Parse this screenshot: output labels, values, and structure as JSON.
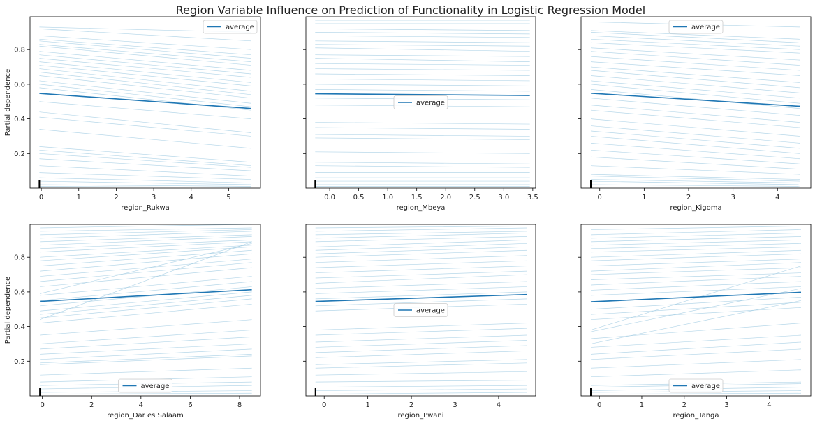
{
  "figure": {
    "title": "Region Variable Influence on Prediction of Functionality in Logistic Regression Model"
  },
  "style": {
    "ice_color": "#9ecae1",
    "average_color": "#1f77b4",
    "rug_color": "#000000",
    "axis_color": "#000000"
  },
  "chart_data": [
    {
      "type": "line",
      "xlabel": "region_Rukwa",
      "ylabel": "Partial dependence",
      "xlim": [
        -0.3,
        5.85
      ],
      "ylim": [
        0.0,
        0.99
      ],
      "xticks": [
        0,
        1,
        2,
        3,
        4,
        5
      ],
      "yticks": [
        0.2,
        0.4,
        0.6,
        0.8
      ],
      "show_yticklabels": true,
      "x_range": [
        -0.05,
        5.6
      ],
      "rug": [
        -0.05
      ],
      "legend": {
        "label": "average",
        "placement": "top-right"
      },
      "average": [
        0.547,
        0.46
      ],
      "ice": [
        [
          0.93,
          0.9
        ],
        [
          0.92,
          0.85
        ],
        [
          0.88,
          0.8
        ],
        [
          0.86,
          0.77
        ],
        [
          0.85,
          0.75
        ],
        [
          0.83,
          0.73
        ],
        [
          0.82,
          0.71
        ],
        [
          0.79,
          0.68
        ],
        [
          0.77,
          0.66
        ],
        [
          0.75,
          0.64
        ],
        [
          0.73,
          0.61
        ],
        [
          0.71,
          0.59
        ],
        [
          0.69,
          0.56
        ],
        [
          0.67,
          0.54
        ],
        [
          0.65,
          0.52
        ],
        [
          0.62,
          0.49
        ],
        [
          0.6,
          0.47
        ],
        [
          0.58,
          0.45
        ],
        [
          0.5,
          0.4
        ],
        [
          0.44,
          0.32
        ],
        [
          0.41,
          0.3
        ],
        [
          0.34,
          0.23
        ],
        [
          0.24,
          0.15
        ],
        [
          0.22,
          0.13
        ],
        [
          0.2,
          0.12
        ],
        [
          0.17,
          0.1
        ],
        [
          0.13,
          0.07
        ],
        [
          0.09,
          0.05
        ],
        [
          0.06,
          0.03
        ],
        [
          0.04,
          0.02
        ],
        [
          0.02,
          0.01
        ],
        [
          0.01,
          0.005
        ]
      ]
    },
    {
      "type": "line",
      "xlabel": "region_Mbeya",
      "ylabel": "",
      "xlim": [
        -0.41,
        3.55
      ],
      "ylim": [
        0.0,
        0.99
      ],
      "xticks": [
        0.0,
        0.5,
        1.0,
        1.5,
        2.0,
        2.5,
        3.0,
        3.5
      ],
      "yticks": [
        0.2,
        0.4,
        0.6,
        0.8
      ],
      "show_yticklabels": false,
      "x_range": [
        -0.25,
        3.45
      ],
      "rug": [
        -0.25
      ],
      "legend": {
        "label": "average",
        "placement": "center"
      },
      "average": [
        0.545,
        0.535
      ],
      "ice": [
        [
          0.97,
          0.97
        ],
        [
          0.95,
          0.95
        ],
        [
          0.92,
          0.91
        ],
        [
          0.9,
          0.89
        ],
        [
          0.88,
          0.87
        ],
        [
          0.85,
          0.84
        ],
        [
          0.83,
          0.82
        ],
        [
          0.81,
          0.79
        ],
        [
          0.77,
          0.76
        ],
        [
          0.75,
          0.73
        ],
        [
          0.72,
          0.71
        ],
        [
          0.69,
          0.68
        ],
        [
          0.66,
          0.65
        ],
        [
          0.63,
          0.62
        ],
        [
          0.6,
          0.59
        ],
        [
          0.57,
          0.56
        ],
        [
          0.52,
          0.51
        ],
        [
          0.48,
          0.47
        ],
        [
          0.38,
          0.37
        ],
        [
          0.35,
          0.34
        ],
        [
          0.31,
          0.3
        ],
        [
          0.29,
          0.28
        ],
        [
          0.21,
          0.2
        ],
        [
          0.15,
          0.14
        ],
        [
          0.13,
          0.12
        ],
        [
          0.09,
          0.09
        ],
        [
          0.06,
          0.06
        ],
        [
          0.04,
          0.04
        ],
        [
          0.02,
          0.02
        ],
        [
          0.01,
          0.01
        ]
      ]
    },
    {
      "type": "line",
      "xlabel": "region_Kigoma",
      "ylabel": "",
      "xlim": [
        -0.42,
        4.75
      ],
      "ylim": [
        0.0,
        0.99
      ],
      "xticks": [
        0,
        1,
        2,
        3,
        4
      ],
      "yticks": [
        0.2,
        0.4,
        0.6,
        0.8
      ],
      "show_yticklabels": false,
      "x_range": [
        -0.2,
        4.5
      ],
      "rug": [
        -0.2
      ],
      "legend": {
        "label": "average",
        "placement": "top-center"
      },
      "average": [
        0.548,
        0.473
      ],
      "ice": [
        [
          0.96,
          0.93
        ],
        [
          0.91,
          0.86
        ],
        [
          0.9,
          0.84
        ],
        [
          0.88,
          0.82
        ],
        [
          0.86,
          0.8
        ],
        [
          0.84,
          0.78
        ],
        [
          0.81,
          0.74
        ],
        [
          0.79,
          0.71
        ],
        [
          0.76,
          0.68
        ],
        [
          0.73,
          0.65
        ],
        [
          0.7,
          0.61
        ],
        [
          0.68,
          0.58
        ],
        [
          0.65,
          0.55
        ],
        [
          0.62,
          0.52
        ],
        [
          0.6,
          0.49
        ],
        [
          0.57,
          0.46
        ],
        [
          0.52,
          0.42
        ],
        [
          0.48,
          0.38
        ],
        [
          0.45,
          0.35
        ],
        [
          0.4,
          0.3
        ],
        [
          0.36,
          0.26
        ],
        [
          0.33,
          0.23
        ],
        [
          0.3,
          0.2
        ],
        [
          0.26,
          0.17
        ],
        [
          0.22,
          0.14
        ],
        [
          0.18,
          0.11
        ],
        [
          0.13,
          0.08
        ],
        [
          0.08,
          0.05
        ],
        [
          0.07,
          0.04
        ],
        [
          0.05,
          0.03
        ],
        [
          0.04,
          0.02
        ],
        [
          0.02,
          0.01
        ]
      ]
    },
    {
      "type": "line",
      "xlabel": "region_Dar es Salaam",
      "ylabel": "Partial dependence",
      "xlim": [
        -0.5,
        8.85
      ],
      "ylim": [
        0.0,
        0.99
      ],
      "xticks": [
        0,
        2,
        4,
        6,
        8
      ],
      "yticks": [
        0.2,
        0.4,
        0.6,
        0.8
      ],
      "show_yticklabels": true,
      "x_range": [
        -0.1,
        8.5
      ],
      "rug": [
        -0.1
      ],
      "legend": {
        "label": "average",
        "placement": "bottom-center"
      },
      "average": [
        0.545,
        0.613
      ],
      "ice": [
        [
          0.97,
          0.99
        ],
        [
          0.95,
          0.97
        ],
        [
          0.93,
          0.96
        ],
        [
          0.91,
          0.95
        ],
        [
          0.89,
          0.93
        ],
        [
          0.87,
          0.92
        ],
        [
          0.85,
          0.9
        ],
        [
          0.83,
          0.89
        ],
        [
          0.8,
          0.87
        ],
        [
          0.78,
          0.86
        ],
        [
          0.75,
          0.84
        ],
        [
          0.72,
          0.82
        ],
        [
          0.69,
          0.79
        ],
        [
          0.66,
          0.77
        ],
        [
          0.63,
          0.74
        ],
        [
          0.59,
          0.88
        ],
        [
          0.58,
          0.69
        ],
        [
          0.55,
          0.66
        ],
        [
          0.52,
          0.63
        ],
        [
          0.49,
          0.6
        ],
        [
          0.47,
          0.58
        ],
        [
          0.45,
          0.56
        ],
        [
          0.44,
          0.89
        ],
        [
          0.42,
          0.53
        ],
        [
          0.35,
          0.44
        ],
        [
          0.3,
          0.38
        ],
        [
          0.27,
          0.34
        ],
        [
          0.24,
          0.3
        ],
        [
          0.21,
          0.27
        ],
        [
          0.19,
          0.24
        ],
        [
          0.18,
          0.23
        ],
        [
          0.12,
          0.16
        ],
        [
          0.08,
          0.11
        ],
        [
          0.06,
          0.08
        ],
        [
          0.04,
          0.06
        ],
        [
          0.02,
          0.03
        ],
        [
          0.01,
          0.015
        ]
      ]
    },
    {
      "type": "line",
      "xlabel": "region_Pwani",
      "ylabel": "",
      "xlim": [
        -0.42,
        4.85
      ],
      "ylim": [
        0.0,
        0.99
      ],
      "xticks": [
        0,
        1,
        2,
        3,
        4
      ],
      "yticks": [
        0.2,
        0.4,
        0.6,
        0.8
      ],
      "show_yticklabels": false,
      "x_range": [
        -0.2,
        4.65
      ],
      "rug": [
        -0.2
      ],
      "legend": {
        "label": "average",
        "placement": "center"
      },
      "average": [
        0.545,
        0.585
      ],
      "ice": [
        [
          0.97,
          0.98
        ],
        [
          0.95,
          0.97
        ],
        [
          0.93,
          0.95
        ],
        [
          0.91,
          0.94
        ],
        [
          0.89,
          0.92
        ],
        [
          0.86,
          0.9
        ],
        [
          0.84,
          0.88
        ],
        [
          0.82,
          0.86
        ],
        [
          0.8,
          0.84
        ],
        [
          0.77,
          0.81
        ],
        [
          0.74,
          0.78
        ],
        [
          0.71,
          0.75
        ],
        [
          0.68,
          0.72
        ],
        [
          0.65,
          0.7
        ],
        [
          0.62,
          0.66
        ],
        [
          0.59,
          0.63
        ],
        [
          0.56,
          0.6
        ],
        [
          0.52,
          0.56
        ],
        [
          0.49,
          0.53
        ],
        [
          0.38,
          0.42
        ],
        [
          0.35,
          0.39
        ],
        [
          0.31,
          0.35
        ],
        [
          0.28,
          0.32
        ],
        [
          0.25,
          0.29
        ],
        [
          0.22,
          0.26
        ],
        [
          0.18,
          0.21
        ],
        [
          0.16,
          0.19
        ],
        [
          0.12,
          0.14
        ],
        [
          0.08,
          0.09
        ],
        [
          0.05,
          0.06
        ],
        [
          0.03,
          0.04
        ],
        [
          0.01,
          0.02
        ]
      ]
    },
    {
      "type": "line",
      "xlabel": "region_Tanga",
      "ylabel": "",
      "xlim": [
        -0.43,
        4.98
      ],
      "ylim": [
        0.0,
        0.99
      ],
      "xticks": [
        0,
        1,
        2,
        3,
        4
      ],
      "yticks": [
        0.2,
        0.4,
        0.6,
        0.8
      ],
      "show_yticklabels": false,
      "x_range": [
        -0.2,
        4.75
      ],
      "rug": [
        -0.2
      ],
      "legend": {
        "label": "average",
        "placement": "bottom-center"
      },
      "average": [
        0.543,
        0.598
      ],
      "ice": [
        [
          0.96,
          0.98
        ],
        [
          0.93,
          0.96
        ],
        [
          0.91,
          0.94
        ],
        [
          0.89,
          0.92
        ],
        [
          0.87,
          0.9
        ],
        [
          0.85,
          0.88
        ],
        [
          0.83,
          0.86
        ],
        [
          0.8,
          0.84
        ],
        [
          0.78,
          0.82
        ],
        [
          0.75,
          0.79
        ],
        [
          0.72,
          0.77
        ],
        [
          0.7,
          0.74
        ],
        [
          0.67,
          0.71
        ],
        [
          0.64,
          0.69
        ],
        [
          0.61,
          0.66
        ],
        [
          0.58,
          0.63
        ],
        [
          0.54,
          0.6
        ],
        [
          0.5,
          0.57
        ],
        [
          0.47,
          0.54
        ],
        [
          0.44,
          0.51
        ],
        [
          0.38,
          0.75
        ],
        [
          0.37,
          0.62
        ],
        [
          0.33,
          0.42
        ],
        [
          0.3,
          0.55
        ],
        [
          0.28,
          0.35
        ],
        [
          0.24,
          0.31
        ],
        [
          0.21,
          0.27
        ],
        [
          0.16,
          0.21
        ],
        [
          0.11,
          0.15
        ],
        [
          0.06,
          0.08
        ],
        [
          0.05,
          0.07
        ],
        [
          0.03,
          0.05
        ],
        [
          0.02,
          0.03
        ],
        [
          0.01,
          0.015
        ]
      ]
    }
  ]
}
